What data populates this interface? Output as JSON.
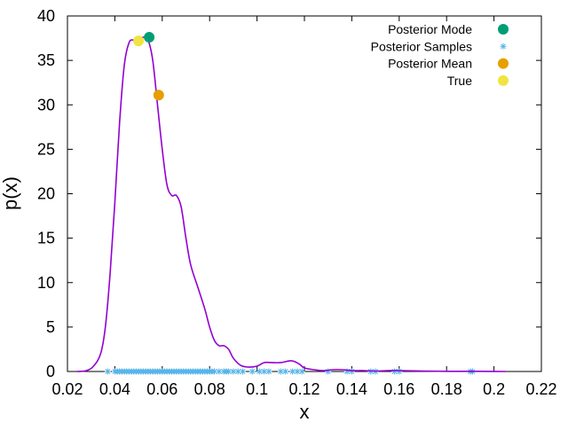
{
  "chart_data": {
    "type": "line",
    "xlabel": "x",
    "ylabel": "p(x)",
    "xlim": [
      0.02,
      0.22
    ],
    "ylim": [
      0,
      40
    ],
    "x_ticks": [
      0.02,
      0.04,
      0.06,
      0.08,
      0.1,
      0.12,
      0.14,
      0.16,
      0.18,
      0.2,
      0.22
    ],
    "x_tick_labels": [
      "0.02",
      "0.04",
      "0.06",
      "0.08",
      "0.1",
      "0.12",
      "0.14",
      "0.16",
      "0.18",
      "0.2",
      "0.22"
    ],
    "y_ticks": [
      0,
      5,
      10,
      15,
      20,
      25,
      30,
      35,
      40
    ],
    "y_tick_labels": [
      "0",
      "5",
      "10",
      "15",
      "20",
      "25",
      "30",
      "35",
      "40"
    ],
    "grid": false,
    "legend_position": "top-right",
    "density_curve": {
      "color": "#9400d3",
      "x": [
        0.024,
        0.028,
        0.031,
        0.034,
        0.036,
        0.038,
        0.04,
        0.042,
        0.044,
        0.046,
        0.048,
        0.05,
        0.052,
        0.054,
        0.056,
        0.058,
        0.06,
        0.062,
        0.064,
        0.066,
        0.068,
        0.07,
        0.072,
        0.075,
        0.078,
        0.08,
        0.082,
        0.084,
        0.086,
        0.088,
        0.09,
        0.093,
        0.096,
        0.1,
        0.103,
        0.106,
        0.11,
        0.114,
        0.116,
        0.118,
        0.12,
        0.124,
        0.128,
        0.132,
        0.136,
        0.14,
        0.145,
        0.15,
        0.155,
        0.16,
        0.17,
        0.18,
        0.19,
        0.2,
        0.205
      ],
      "y": [
        0,
        0.1,
        0.6,
        2.0,
        5.0,
        11.0,
        19.0,
        28.0,
        34.5,
        37.0,
        37.3,
        37.3,
        37.6,
        37.3,
        35.0,
        30.0,
        25.0,
        21.0,
        19.8,
        19.8,
        18.5,
        15.0,
        12.0,
        9.5,
        7.0,
        5.0,
        3.5,
        2.9,
        2.9,
        2.5,
        1.5,
        0.7,
        0.5,
        0.6,
        1.0,
        1.0,
        1.0,
        1.2,
        1.1,
        0.8,
        0.4,
        0.2,
        0.1,
        0.2,
        0.2,
        0.1,
        0.1,
        0.05,
        0.1,
        0.1,
        0.05,
        0.02,
        0.02,
        0.01,
        0
      ]
    },
    "series": [
      {
        "name": "Posterior Mode",
        "kind": "point",
        "color": "#009e73",
        "x": [
          0.0545
        ],
        "y": [
          37.6
        ]
      },
      {
        "name": "Posterior Samples",
        "kind": "samples",
        "color": "#56b4e9",
        "x": [
          0.037,
          0.04,
          0.041,
          0.042,
          0.043,
          0.044,
          0.045,
          0.046,
          0.047,
          0.048,
          0.049,
          0.05,
          0.051,
          0.052,
          0.053,
          0.054,
          0.055,
          0.056,
          0.057,
          0.058,
          0.059,
          0.06,
          0.061,
          0.062,
          0.063,
          0.064,
          0.065,
          0.066,
          0.067,
          0.068,
          0.069,
          0.07,
          0.071,
          0.072,
          0.073,
          0.074,
          0.075,
          0.076,
          0.077,
          0.078,
          0.079,
          0.08,
          0.081,
          0.082,
          0.084,
          0.086,
          0.087,
          0.088,
          0.09,
          0.092,
          0.094,
          0.098,
          0.101,
          0.103,
          0.105,
          0.11,
          0.112,
          0.115,
          0.117,
          0.119,
          0.13,
          0.138,
          0.14,
          0.148,
          0.15,
          0.158,
          0.16,
          0.19,
          0.191
        ],
        "y": [
          0,
          0,
          0,
          0,
          0,
          0,
          0,
          0,
          0,
          0,
          0,
          0,
          0,
          0,
          0,
          0,
          0,
          0,
          0,
          0,
          0,
          0,
          0,
          0,
          0,
          0,
          0,
          0,
          0,
          0,
          0,
          0,
          0,
          0,
          0,
          0,
          0,
          0,
          0,
          0,
          0,
          0,
          0,
          0,
          0,
          0,
          0,
          0,
          0,
          0,
          0,
          0,
          0,
          0,
          0,
          0,
          0,
          0,
          0,
          0,
          0,
          0,
          0,
          0,
          0,
          0,
          0,
          0,
          0
        ]
      },
      {
        "name": "Posterior Mean",
        "kind": "point",
        "color": "#e69f00",
        "x": [
          0.0585
        ],
        "y": [
          31.1
        ]
      },
      {
        "name": "True",
        "kind": "point",
        "color": "#f0e442",
        "x": [
          0.05
        ],
        "y": [
          37.2
        ]
      }
    ]
  }
}
